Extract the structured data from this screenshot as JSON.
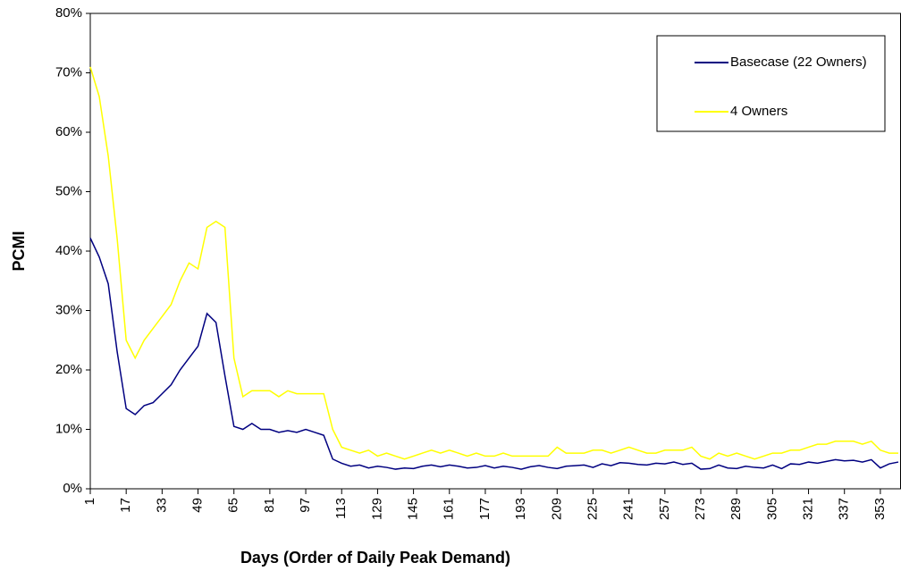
{
  "chart_data": {
    "type": "line",
    "xlabel": "Days (Order of Daily Peak Demand)",
    "ylabel": "PCMI",
    "x": [
      1,
      5,
      9,
      13,
      17,
      21,
      25,
      29,
      33,
      37,
      41,
      45,
      49,
      53,
      57,
      61,
      65,
      69,
      73,
      77,
      81,
      85,
      89,
      93,
      97,
      101,
      105,
      109,
      113,
      117,
      121,
      125,
      129,
      133,
      137,
      141,
      145,
      149,
      153,
      157,
      161,
      165,
      169,
      173,
      177,
      181,
      185,
      189,
      193,
      197,
      201,
      205,
      209,
      213,
      217,
      221,
      225,
      229,
      233,
      237,
      241,
      245,
      249,
      253,
      257,
      261,
      265,
      269,
      273,
      277,
      281,
      285,
      289,
      293,
      297,
      301,
      305,
      309,
      313,
      317,
      321,
      325,
      329,
      333,
      337,
      341,
      345,
      349,
      353,
      357,
      361
    ],
    "series": [
      {
        "name": "Basecase (22 Owners)",
        "color": "#000080",
        "values": [
          42.2,
          39,
          34.5,
          23,
          13.5,
          12.5,
          14,
          14.5,
          16,
          17.5,
          20,
          22,
          24,
          29.5,
          28,
          19,
          10.5,
          10,
          11,
          10,
          10,
          9.5,
          9.8,
          9.5,
          10,
          9.5,
          9,
          5,
          4.3,
          3.8,
          4,
          3.5,
          3.8,
          3.6,
          3.3,
          3.5,
          3.4,
          3.8,
          4,
          3.7,
          4,
          3.8,
          3.5,
          3.6,
          3.9,
          3.5,
          3.8,
          3.6,
          3.3,
          3.7,
          3.9,
          3.6,
          3.4,
          3.8,
          3.9,
          4,
          3.6,
          4.2,
          3.9,
          4.4,
          4.3,
          4.1,
          4,
          4.3,
          4.2,
          4.5,
          4.1,
          4.3,
          3.3,
          3.4,
          4,
          3.5,
          3.4,
          3.8,
          3.6,
          3.5,
          4,
          3.4,
          4.2,
          4.1,
          4.5,
          4.3,
          4.6,
          4.9,
          4.7,
          4.8,
          4.5,
          4.9,
          3.5,
          4.2,
          4.5
        ]
      },
      {
        "name": "4 Owners",
        "color": "#ffff00",
        "values": [
          71,
          66,
          56,
          42,
          25,
          22,
          25,
          27,
          29,
          31,
          35,
          38,
          37,
          44,
          45,
          44,
          22,
          15.5,
          16.5,
          16.5,
          16.5,
          15.5,
          16.5,
          16,
          16,
          16,
          16,
          10,
          7,
          6.5,
          6,
          6.5,
          5.5,
          6,
          5.5,
          5,
          5.5,
          6,
          6.5,
          6,
          6.5,
          6,
          5.5,
          6,
          5.5,
          5.5,
          6,
          5.5,
          5.5,
          5.5,
          5.5,
          5.5,
          7,
          6,
          6,
          6,
          6.5,
          6.5,
          6,
          6.5,
          7,
          6.5,
          6,
          6,
          6.5,
          6.5,
          6.5,
          7,
          5.5,
          5,
          6,
          5.5,
          6,
          5.5,
          5,
          5.5,
          6,
          6,
          6.5,
          6.5,
          7,
          7.5,
          7.5,
          8,
          8,
          8,
          7.5,
          8,
          6.5,
          6,
          6
        ]
      }
    ],
    "xlim": [
      1,
      362
    ],
    "xticks": [
      1,
      17,
      33,
      49,
      65,
      81,
      97,
      113,
      129,
      145,
      161,
      177,
      193,
      209,
      225,
      241,
      257,
      273,
      289,
      305,
      321,
      337,
      353
    ],
    "ylim": [
      0,
      80
    ],
    "yticks": [
      {
        "value": 0,
        "label": "0%"
      },
      {
        "value": 10,
        "label": "10%"
      },
      {
        "value": 20,
        "label": "20%"
      },
      {
        "value": 30,
        "label": "30%"
      },
      {
        "value": 40,
        "label": "40%"
      },
      {
        "value": 50,
        "label": "50%"
      },
      {
        "value": 60,
        "label": "60%"
      },
      {
        "value": 70,
        "label": "70%"
      },
      {
        "value": 80,
        "label": "80%"
      }
    ],
    "legend": "top-right"
  }
}
